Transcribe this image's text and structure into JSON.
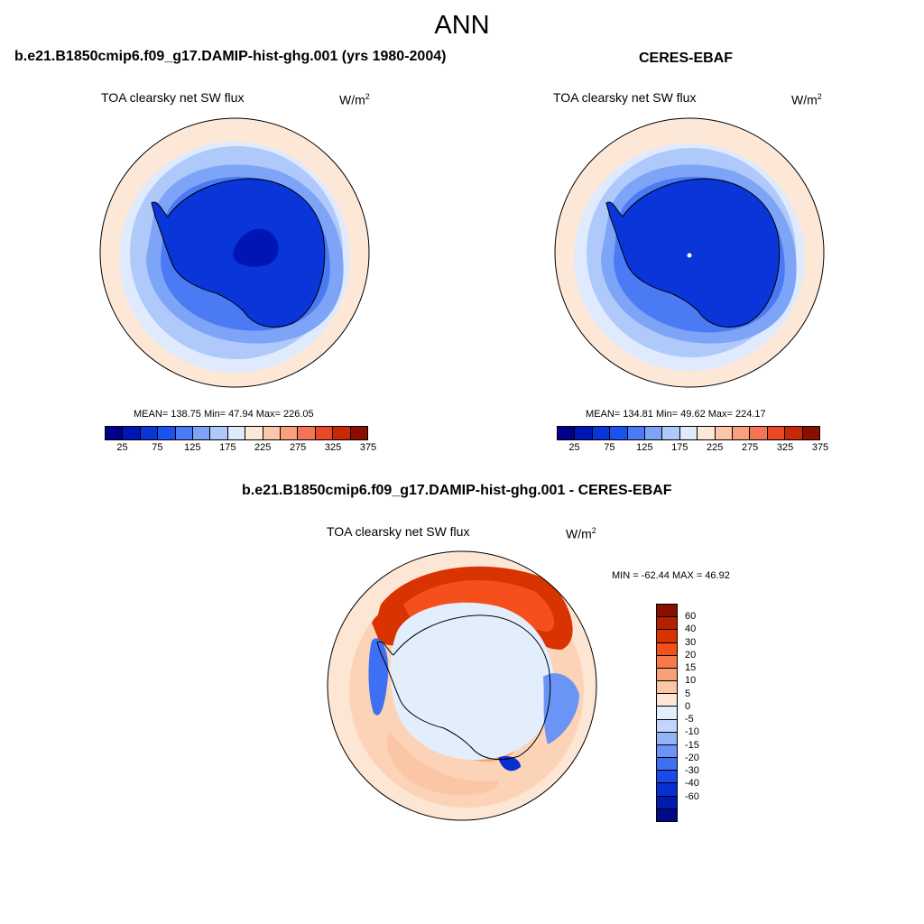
{
  "figure": {
    "title": "ANN"
  },
  "panels": [
    {
      "title": "b.e21.B1850cmip6.f09_g17.DAMIP-hist-ghg.001 (yrs 1980-2004)",
      "variable": "TOA clearsky net SW flux",
      "units": "W/m",
      "units_sup": "2",
      "stats": {
        "mean": "138.75",
        "min": "47.94",
        "max": "226.05"
      },
      "stats_text": "MEAN= 138.75  Min=  47.94  Max= 226.05"
    },
    {
      "title": "CERES-EBAF",
      "variable": "TOA clearsky net SW flux",
      "units": "W/m",
      "units_sup": "2",
      "stats": {
        "mean": "134.81",
        "min": "49.62",
        "max": "224.17"
      },
      "stats_text": "MEAN= 134.81  Min=  49.62  Max= 224.17"
    },
    {
      "title": "b.e21.B1850cmip6.f09_g17.DAMIP-hist-ghg.001 - CERES-EBAF",
      "variable": "TOA clearsky net SW flux",
      "units": "W/m",
      "units_sup": "2",
      "stats": {
        "min": "-62.44",
        "max": "46.92"
      },
      "stats_text": "MIN = -62.44 MAX =  46.92"
    }
  ],
  "colorbar_abs": {
    "colors": [
      "#00008b",
      "#0016b4",
      "#0a35d9",
      "#1a52f0",
      "#4a7bf5",
      "#7ea4f8",
      "#afc9fb",
      "#dfeafd",
      "#fde8d8",
      "#fcc6ab",
      "#f99f7e",
      "#f47453",
      "#ea4826",
      "#c72808",
      "#8b0f00"
    ],
    "tick_labels": [
      "25",
      "75",
      "125",
      "175",
      "225",
      "275",
      "325",
      "375"
    ],
    "range": [
      0,
      400
    ],
    "step": 25
  },
  "colorbar_diff": {
    "colors": [
      "#8b0f00",
      "#b52000",
      "#d83300",
      "#f5501b",
      "#f77a4c",
      "#f8a177",
      "#fbc6a5",
      "#fde6d3",
      "#e3eefd",
      "#c2d6fb",
      "#93b3f8",
      "#6a94f6",
      "#3e70f3",
      "#1a4ae8",
      "#0a2fd1",
      "#001cb0",
      "#000a84"
    ],
    "tick_labels": [
      "60",
      "40",
      "30",
      "20",
      "15",
      "10",
      "5",
      "0",
      "-5",
      "-10",
      "-15",
      "-20",
      "-30",
      "-40",
      "-60"
    ]
  },
  "map_colors": {
    "ocean_far": "#fde8d8",
    "ring1": "#dfeafd",
    "ring2": "#afc9fb",
    "ring3": "#7ea4f8",
    "ring4": "#4a7bf5",
    "ring5": "#1a52f0",
    "land": "#0a35d9",
    "land_core": "#0016b4",
    "coast": "#000000"
  },
  "chart_data": {
    "type": "heatmap",
    "projection": "south polar stereographic",
    "series": [
      {
        "name": "b.e21.B1850cmip6.f09_g17.DAMIP-hist-ghg.001 (yrs 1980-2004)",
        "mean": 138.75,
        "min": 47.94,
        "max": 226.05
      },
      {
        "name": "CERES-EBAF",
        "mean": 134.81,
        "min": 49.62,
        "max": 224.17
      },
      {
        "name": "b.e21.B1850cmip6.f09_g17.DAMIP-hist-ghg.001 - CERES-EBAF",
        "min": -62.44,
        "max": 46.92
      }
    ],
    "contour_levels_abs": [
      25,
      50,
      75,
      100,
      125,
      150,
      175,
      200,
      225,
      250,
      275,
      300,
      325,
      350,
      375
    ],
    "contour_levels_diff": [
      -60,
      -40,
      -30,
      -20,
      -15,
      -10,
      -5,
      0,
      5,
      10,
      15,
      20,
      30,
      40,
      60
    ]
  }
}
